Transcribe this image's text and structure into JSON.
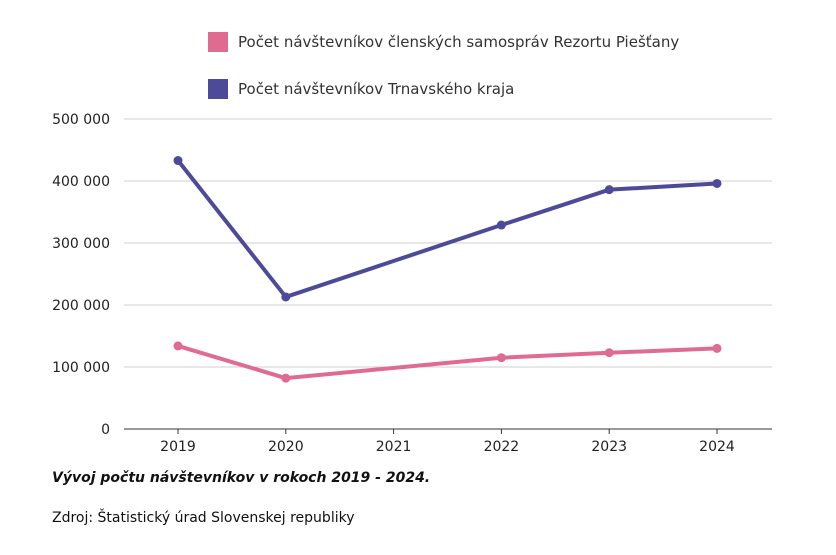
{
  "chart_data": {
    "type": "line",
    "title": "Vývoj počtu návštevníkov v rokoch 2019 - 2024.",
    "source": "Zdroj: Štatistický úrad Slovenskej republiky",
    "categories": [
      "2019",
      "2020",
      "2021",
      "2022",
      "2023",
      "2024"
    ],
    "series": [
      {
        "name": "Počet návštevníkov členských samospráv Rezortu Piešťany",
        "color": "#e06b91",
        "values": [
          134000,
          82000,
          null,
          115000,
          123000,
          130000
        ]
      },
      {
        "name": "Počet návštevníkov Trnavského kraja",
        "color": "#4e4a9a",
        "values": [
          433000,
          213000,
          null,
          329000,
          386000,
          396000
        ]
      }
    ],
    "yticks": [
      "0",
      "100 000",
      "200 000",
      "300 000",
      "400 000",
      "500 000"
    ],
    "ylim": [
      0,
      500000
    ],
    "grid": true,
    "legend_position": "top"
  }
}
